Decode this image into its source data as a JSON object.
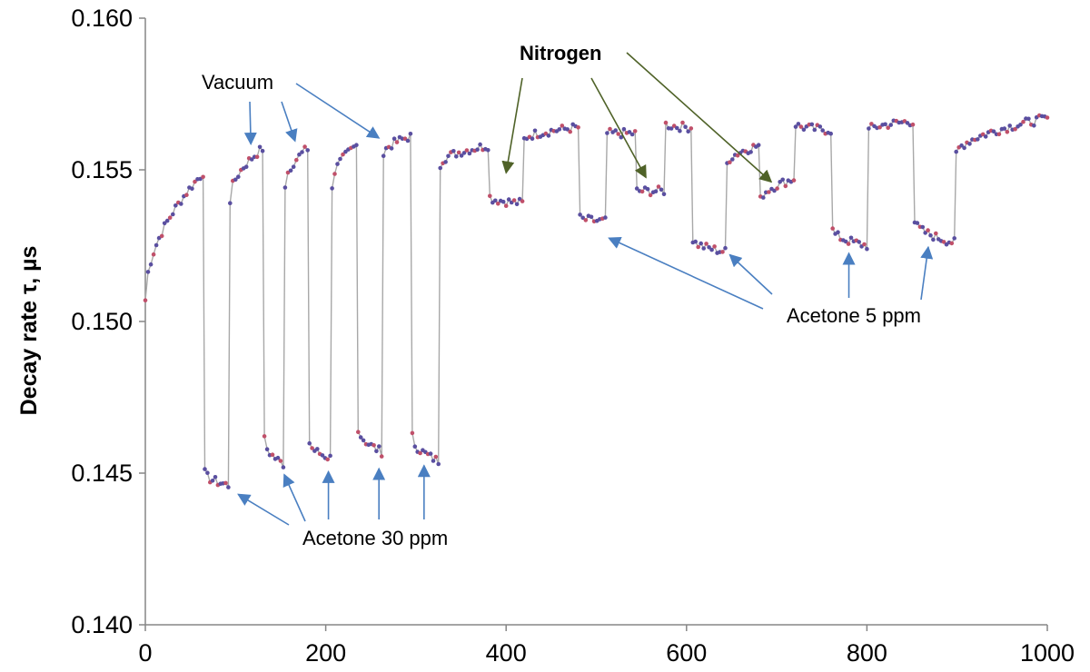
{
  "chart_data": {
    "type": "scatter",
    "title": "",
    "xlabel": "",
    "ylabel": "Decay rate τ, µs",
    "xlim": [
      0,
      1000
    ],
    "ylim": [
      0.14,
      0.16
    ],
    "x_ticks": [
      0,
      200,
      400,
      600,
      800,
      1000
    ],
    "y_ticks": [
      0.14,
      0.145,
      0.15,
      0.155,
      0.16
    ],
    "x_tick_labels": [
      "0",
      "200",
      "400",
      "600",
      "800",
      "1000"
    ],
    "y_tick_labels": [
      "0.140",
      "0.145",
      "0.150",
      "0.155",
      "0.160"
    ],
    "grid": false,
    "line_color": "#a8a8a8",
    "marker_color": "#5a4fa0",
    "marker_accent": "#c0506a",
    "vacuum_arrow_color": "#4a7fc1",
    "nitrogen_arrow_color": "#4f6228",
    "segments": [
      {
        "x0": 0,
        "x1": 64,
        "y0": 0.1507,
        "y1": 0.1549
      },
      {
        "x0": 66,
        "x1": 92,
        "y0": 0.145,
        "y1": 0.1446
      },
      {
        "x0": 94,
        "x1": 130,
        "y0": 0.154,
        "y1": 0.1557
      },
      {
        "x0": 132,
        "x1": 153,
        "y0": 0.1461,
        "y1": 0.1453
      },
      {
        "x0": 155,
        "x1": 180,
        "y0": 0.1545,
        "y1": 0.1557
      },
      {
        "x0": 182,
        "x1": 205,
        "y0": 0.146,
        "y1": 0.1455
      },
      {
        "x0": 207,
        "x1": 234,
        "y0": 0.1545,
        "y1": 0.1558
      },
      {
        "x0": 236,
        "x1": 262,
        "y0": 0.1465,
        "y1": 0.1457
      },
      {
        "x0": 264,
        "x1": 294,
        "y0": 0.1555,
        "y1": 0.1561
      },
      {
        "x0": 296,
        "x1": 325,
        "y0": 0.1462,
        "y1": 0.1454
      },
      {
        "x0": 327,
        "x1": 380,
        "y0": 0.1552,
        "y1": 0.1558
      },
      {
        "x0": 382,
        "x1": 418,
        "y0": 0.1541,
        "y1": 0.1539
      },
      {
        "x0": 420,
        "x1": 480,
        "y0": 0.156,
        "y1": 0.1564
      },
      {
        "x0": 482,
        "x1": 510,
        "y0": 0.1534,
        "y1": 0.1533
      },
      {
        "x0": 512,
        "x1": 543,
        "y0": 0.1562,
        "y1": 0.1562
      },
      {
        "x0": 545,
        "x1": 575,
        "y0": 0.1543,
        "y1": 0.1543
      },
      {
        "x0": 577,
        "x1": 605,
        "y0": 0.1565,
        "y1": 0.1564
      },
      {
        "x0": 607,
        "x1": 643,
        "y0": 0.1527,
        "y1": 0.1523
      },
      {
        "x0": 645,
        "x1": 680,
        "y0": 0.1552,
        "y1": 0.1558
      },
      {
        "x0": 682,
        "x1": 719,
        "y0": 0.154,
        "y1": 0.1547
      },
      {
        "x0": 721,
        "x1": 760,
        "y0": 0.1565,
        "y1": 0.1563
      },
      {
        "x0": 762,
        "x1": 800,
        "y0": 0.153,
        "y1": 0.1525
      },
      {
        "x0": 802,
        "x1": 851,
        "y0": 0.1563,
        "y1": 0.1566
      },
      {
        "x0": 853,
        "x1": 897,
        "y0": 0.1533,
        "y1": 0.1526
      },
      {
        "x0": 899,
        "x1": 1000,
        "y0": 0.1555,
        "y1": 0.1567
      }
    ],
    "annotations": {
      "vacuum": {
        "text": "Vacuum",
        "arrows": [
          [
            117,
            0.15585
          ],
          [
            166,
            0.15595
          ],
          [
            213,
            0.1561
          ],
          [
            259,
            0.15605
          ]
        ]
      },
      "nitrogen": {
        "text": "Nitrogen",
        "arrows": [
          [
            400,
            0.1549
          ],
          [
            555,
            0.15475
          ],
          [
            694,
            0.1546
          ]
        ]
      },
      "acetone30": {
        "text": "Acetone 30 ppm",
        "arrows": [
          [
            103,
            0.1443
          ],
          [
            154,
            0.14495
          ],
          [
            203,
            0.14505
          ],
          [
            259,
            0.14515
          ],
          [
            309,
            0.14525
          ]
        ]
      },
      "acetone5": {
        "text": "Acetone 5 ppm",
        "arrows": [
          [
            514,
            0.15275
          ],
          [
            648,
            0.1522
          ],
          [
            780,
            0.15225
          ],
          [
            868,
            0.15245
          ]
        ]
      }
    }
  }
}
